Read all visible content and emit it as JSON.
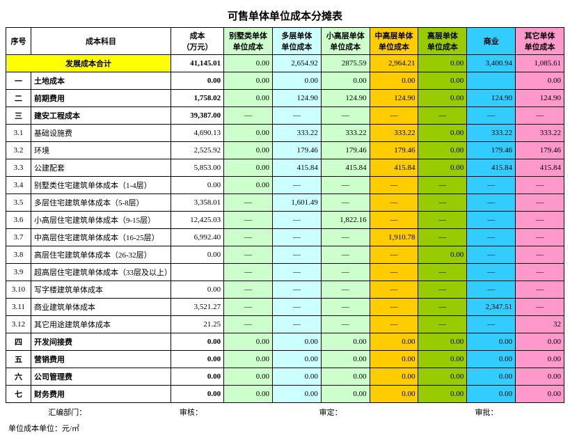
{
  "title": "可售单体单位成本分摊表",
  "columns": {
    "idx": "序号",
    "name": "成本科目",
    "cost": "成本\n（万元）",
    "villa": "别墅类单体\n单位成本",
    "multi": "多层单体\n单位成本",
    "lowhi": "小高层单体\n单位成本",
    "midhi": "中高层单体\n单位成本",
    "high": "高层单体\n单位成本",
    "biz": "商业",
    "other": "其它单体\n单位成本"
  },
  "col_colors": {
    "villa": "#ccffcc",
    "multi": "#ccffff",
    "lowhi": "#ccffcc",
    "midhi": "#ffcc00",
    "high": "#99cc00",
    "biz": "#33ccff",
    "other": "#ff99cc"
  },
  "total_row": {
    "label": "发展成本合计",
    "cost": "41,145.01",
    "villa": "0.00",
    "multi": "2,654.92",
    "lowhi": "2875.59",
    "midhi": "2,964.21",
    "high": "0.00",
    "biz": "3,400.94",
    "other": "1,085.61"
  },
  "rows": [
    {
      "idx": "一",
      "name": "土地成本",
      "bold": true,
      "cost": "0.00",
      "villa": "0.00",
      "multi": "0.00",
      "lowhi": "0.00",
      "midhi": "0.00",
      "high": "0.00",
      "biz": "",
      "other": "0.00"
    },
    {
      "idx": "二",
      "name": "前期费用",
      "bold": true,
      "cost": "1,758.02",
      "villa": "0.00",
      "multi": "124.90",
      "lowhi": "124.90",
      "midhi": "124.90",
      "high": "0.00",
      "biz": "124.90",
      "other": "124.90"
    },
    {
      "idx": "三",
      "name": "建安工程成本",
      "bold": true,
      "cost": "39,387.00",
      "villa": "—",
      "multi": "—",
      "lowhi": "—",
      "midhi": "—",
      "high": "—",
      "biz": "—",
      "other": "—"
    },
    {
      "idx": "3.1",
      "name": "基础设施费",
      "cost": "4,690.13",
      "villa": "0.00",
      "multi": "333.22",
      "lowhi": "333.22",
      "midhi": "333.22",
      "high": "0.00",
      "biz": "333.22",
      "other": "333.22"
    },
    {
      "idx": "3.2",
      "name": "环境",
      "cost": "2,525.92",
      "villa": "0.00",
      "multi": "179.46",
      "lowhi": "179.46",
      "midhi": "179.46",
      "high": "0.00",
      "biz": "179.46",
      "other": "179.46"
    },
    {
      "idx": "3.3",
      "name": "公建配套",
      "cost": "5,853.00",
      "villa": "0.00",
      "multi": "415.84",
      "lowhi": "415.84",
      "midhi": "415.84",
      "high": "0.00",
      "biz": "415.84",
      "other": "415.84"
    },
    {
      "idx": "3.4",
      "name": "别墅类住宅建筑单体成本（1-4层）",
      "cost": "0.00",
      "villa": "0.00",
      "multi": "—",
      "lowhi": "—",
      "midhi": "—",
      "high": "—",
      "biz": "—",
      "other": "—"
    },
    {
      "idx": "3.5",
      "name": "多层住宅建筑单体成本（5-8层）",
      "cost": "3,358.01",
      "villa": "—",
      "multi": "1,601.49",
      "lowhi": "—",
      "midhi": "—",
      "high": "—",
      "biz": "—",
      "other": "—"
    },
    {
      "idx": "3.6",
      "name": "小高层住宅建筑单体成本（9-15层）",
      "cost": "12,425.03",
      "villa": "—",
      "multi": "—",
      "lowhi": "1,822.16",
      "midhi": "—",
      "high": "—",
      "biz": "—",
      "other": "—"
    },
    {
      "idx": "3.7",
      "name": "中高层住宅建筑单体成本（16-25层）",
      "cost": "6,992.40",
      "villa": "—",
      "multi": "—",
      "lowhi": "—",
      "midhi": "1,910.78",
      "high": "—",
      "biz": "—",
      "other": "—"
    },
    {
      "idx": "3.8",
      "name": "高层住宅建筑单体成本（26-32层）",
      "cost": "0.00",
      "villa": "—",
      "multi": "—",
      "lowhi": "—",
      "midhi": "—",
      "high": "0.00",
      "biz": "—",
      "other": "—"
    },
    {
      "idx": "3.9",
      "name": "超高层住宅建筑单体成本（33层及以上）",
      "cost": "",
      "villa": "—",
      "multi": "—",
      "lowhi": "—",
      "midhi": "—",
      "high": "—",
      "biz": "—",
      "other": "—"
    },
    {
      "idx": "3.10",
      "name": "写字楼建筑单体成本",
      "cost": "0.00",
      "villa": "—",
      "multi": "—",
      "lowhi": "—",
      "midhi": "—",
      "high": "—",
      "biz": "—",
      "other": "—"
    },
    {
      "idx": "3.11",
      "name": "商业建筑单体成本",
      "cost": "3,521.27",
      "villa": "—",
      "multi": "—",
      "lowhi": "—",
      "midhi": "—",
      "high": "—",
      "biz": "2,347.51",
      "other": "—"
    },
    {
      "idx": "3.12",
      "name": "其它用途建筑单体成本",
      "cost": "21.25",
      "villa": "—",
      "multi": "—",
      "lowhi": "—",
      "midhi": "—",
      "high": "—",
      "biz": "—",
      "other": "32"
    },
    {
      "idx": "四",
      "name": "开发间接费",
      "bold": true,
      "cost": "0.00",
      "villa": "0.00",
      "multi": "0.00",
      "lowhi": "0.00",
      "midhi": "0.00",
      "high": "0.00",
      "biz": "0.00",
      "other": "0.00"
    },
    {
      "idx": "五",
      "name": "营销费用",
      "bold": true,
      "cost": "0.00",
      "villa": "0.00",
      "multi": "0.00",
      "lowhi": "0.00",
      "midhi": "0.00",
      "high": "0.00",
      "biz": "0.00",
      "other": "0.00"
    },
    {
      "idx": "六",
      "name": "公司管理费",
      "bold": true,
      "cost": "0.00",
      "villa": "0.00",
      "multi": "0.00",
      "lowhi": "0.00",
      "midhi": "0.00",
      "high": "0.00",
      "biz": "0.00",
      "other": "0.00"
    },
    {
      "idx": "七",
      "name": "财务费用",
      "bold": true,
      "cost": "0.00",
      "villa": "0.00",
      "multi": "0.00",
      "lowhi": "0.00",
      "midhi": "0.00",
      "high": "0.00",
      "biz": "0.00",
      "other": "0.00"
    }
  ],
  "footer": {
    "dept": "汇编部门：",
    "audit": "审核：",
    "approve": "审定：",
    "sign": "审批：",
    "unit": "单位成本单位：元/㎡"
  }
}
